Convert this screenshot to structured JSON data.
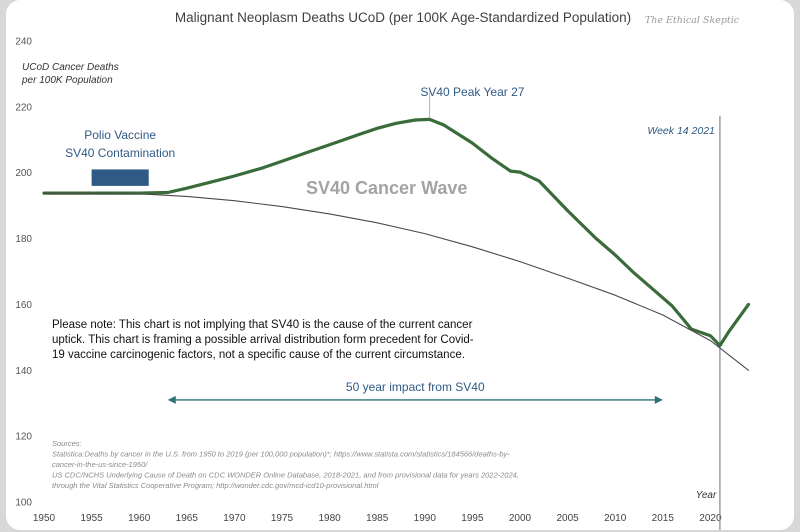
{
  "chart_data": {
    "type": "line",
    "title": "Malignant Neoplasm Deaths UCoD (per 100K Age-Standardized Population)",
    "watermark": "The Ethical Skeptic",
    "ylabel": "UCoD Cancer Deaths\nper 100K Population",
    "xlabel": "Year",
    "xlim": [
      1950,
      2025
    ],
    "ylim": [
      100,
      240
    ],
    "x_ticks": [
      1950,
      1955,
      1960,
      1965,
      1970,
      1975,
      1980,
      1985,
      1990,
      1995,
      2000,
      2005,
      2010,
      2015,
      2020
    ],
    "y_ticks": [
      100,
      120,
      140,
      160,
      180,
      200,
      220,
      240
    ],
    "grid": false,
    "series": [
      {
        "color": "#3a6b3a",
        "style": "thick",
        "x": [
          1950,
          1955,
          1960,
          1963,
          1965,
          1968,
          1970,
          1973,
          1975,
          1978,
          1980,
          1983,
          1985,
          1987,
          1989,
          1990.5,
          1992,
          1995,
          1997,
          1999,
          2000,
          2002,
          2005,
          2008,
          2010,
          2012,
          2014,
          2016,
          2018,
          2020,
          2021,
          2022,
          2023,
          2024
        ],
        "values": [
          193.8,
          193.8,
          193.8,
          194.0,
          195.3,
          197.5,
          199.0,
          201.5,
          203.5,
          206.5,
          208.5,
          211.5,
          213.5,
          215.0,
          216.0,
          216.2,
          214.5,
          209.0,
          204.5,
          200.5,
          200.2,
          197.5,
          188.5,
          180.0,
          175.0,
          169.5,
          164.5,
          159.5,
          152.5,
          150.5,
          147.5,
          152.0,
          156.0,
          160.0
        ]
      },
      {
        "color": "#4a4a4a",
        "style": "thin",
        "x": [
          1950,
          1960,
          1965,
          1970,
          1975,
          1980,
          1985,
          1990,
          1995,
          2000,
          2005,
          2010,
          2015,
          2020,
          2024
        ],
        "values": [
          193.8,
          193.6,
          192.8,
          191.5,
          189.7,
          187.5,
          184.8,
          181.5,
          177.5,
          173.0,
          168.0,
          162.8,
          156.8,
          149.0,
          140.0
        ]
      }
    ],
    "annotations": {
      "polio": [
        "Polio Vaccine",
        "SV40 Contamination"
      ],
      "polio_box": {
        "x_start": 1955,
        "x_end": 1961,
        "y_low": 196,
        "y_high": 201
      },
      "peak_label": "SV40 Peak Year 27",
      "peak_line": {
        "x": 1990.5,
        "y_from": 216,
        "y_to": 225
      },
      "wave_label": "SV40 Cancer Wave",
      "week_label": "Week 14 2021",
      "week_x": 2021,
      "note": [
        "Please note: This chart is not implying that SV40 is the cause of the current cancer",
        "uptick. This chart is framing a possible arrival distribution form precedent for Covid-",
        "19 vaccine carcinogenic factors, not a specific cause of the current circumstance."
      ],
      "impact_label": "50 year impact from SV40",
      "impact_arrow": {
        "x_start": 1963,
        "x_end": 2015,
        "y": 131
      },
      "sources": [
        "Sources:",
        "Statistica:Deaths by cancer in the U.S. from 1950 to 2019 (per 100,000 population)*; https://www.statista.com/statistics/184566/deaths-by-",
        "cancer-in-the-us-since-1950/",
        "US CDC/NCHS Underlying Cause of Death on CDC WONDER Online Database, 2018-2021, and from provisional data for years 2022-2024,",
        "through the Vital Statistics Cooperative Program; http://wonder.cdc.gov/mcd-icd10-provisional.html"
      ]
    }
  }
}
